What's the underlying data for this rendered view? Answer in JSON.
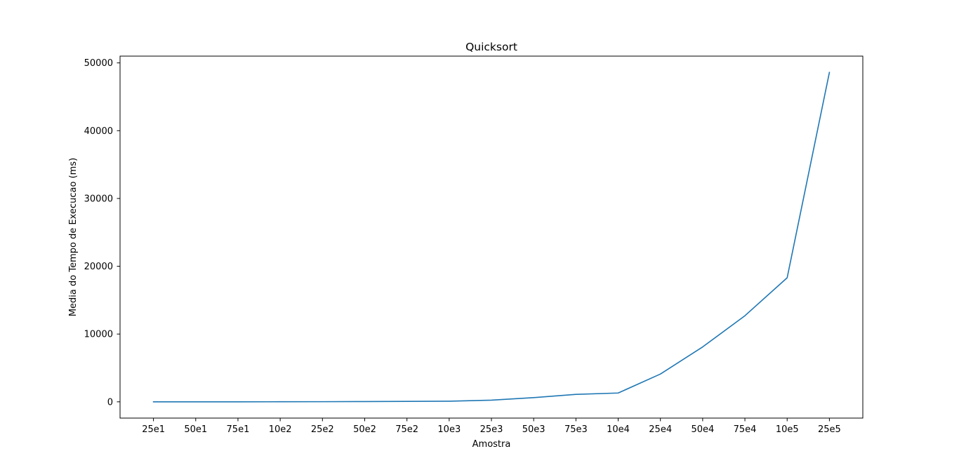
{
  "chart_data": {
    "type": "line",
    "title": "Quicksort",
    "xlabel": "Amostra",
    "ylabel": "Media do Tempo de Execucao (ms)",
    "categories": [
      "25e1",
      "50e1",
      "75e1",
      "10e2",
      "25e2",
      "50e2",
      "75e2",
      "10e3",
      "25e3",
      "50e3",
      "75e3",
      "10e4",
      "25e4",
      "50e4",
      "75e4",
      "10e5",
      "25e5"
    ],
    "series": [
      {
        "values": [
          0,
          0,
          0,
          10,
          20,
          40,
          60,
          90,
          250,
          620,
          1100,
          1300,
          4100,
          8100,
          12700,
          18300,
          48600
        ],
        "color": "#1f77b4"
      }
    ],
    "ylim": [
      -2400,
      51000
    ],
    "yticks": [
      0,
      10000,
      20000,
      30000,
      40000,
      50000
    ],
    "grid": false,
    "legend": "none"
  }
}
